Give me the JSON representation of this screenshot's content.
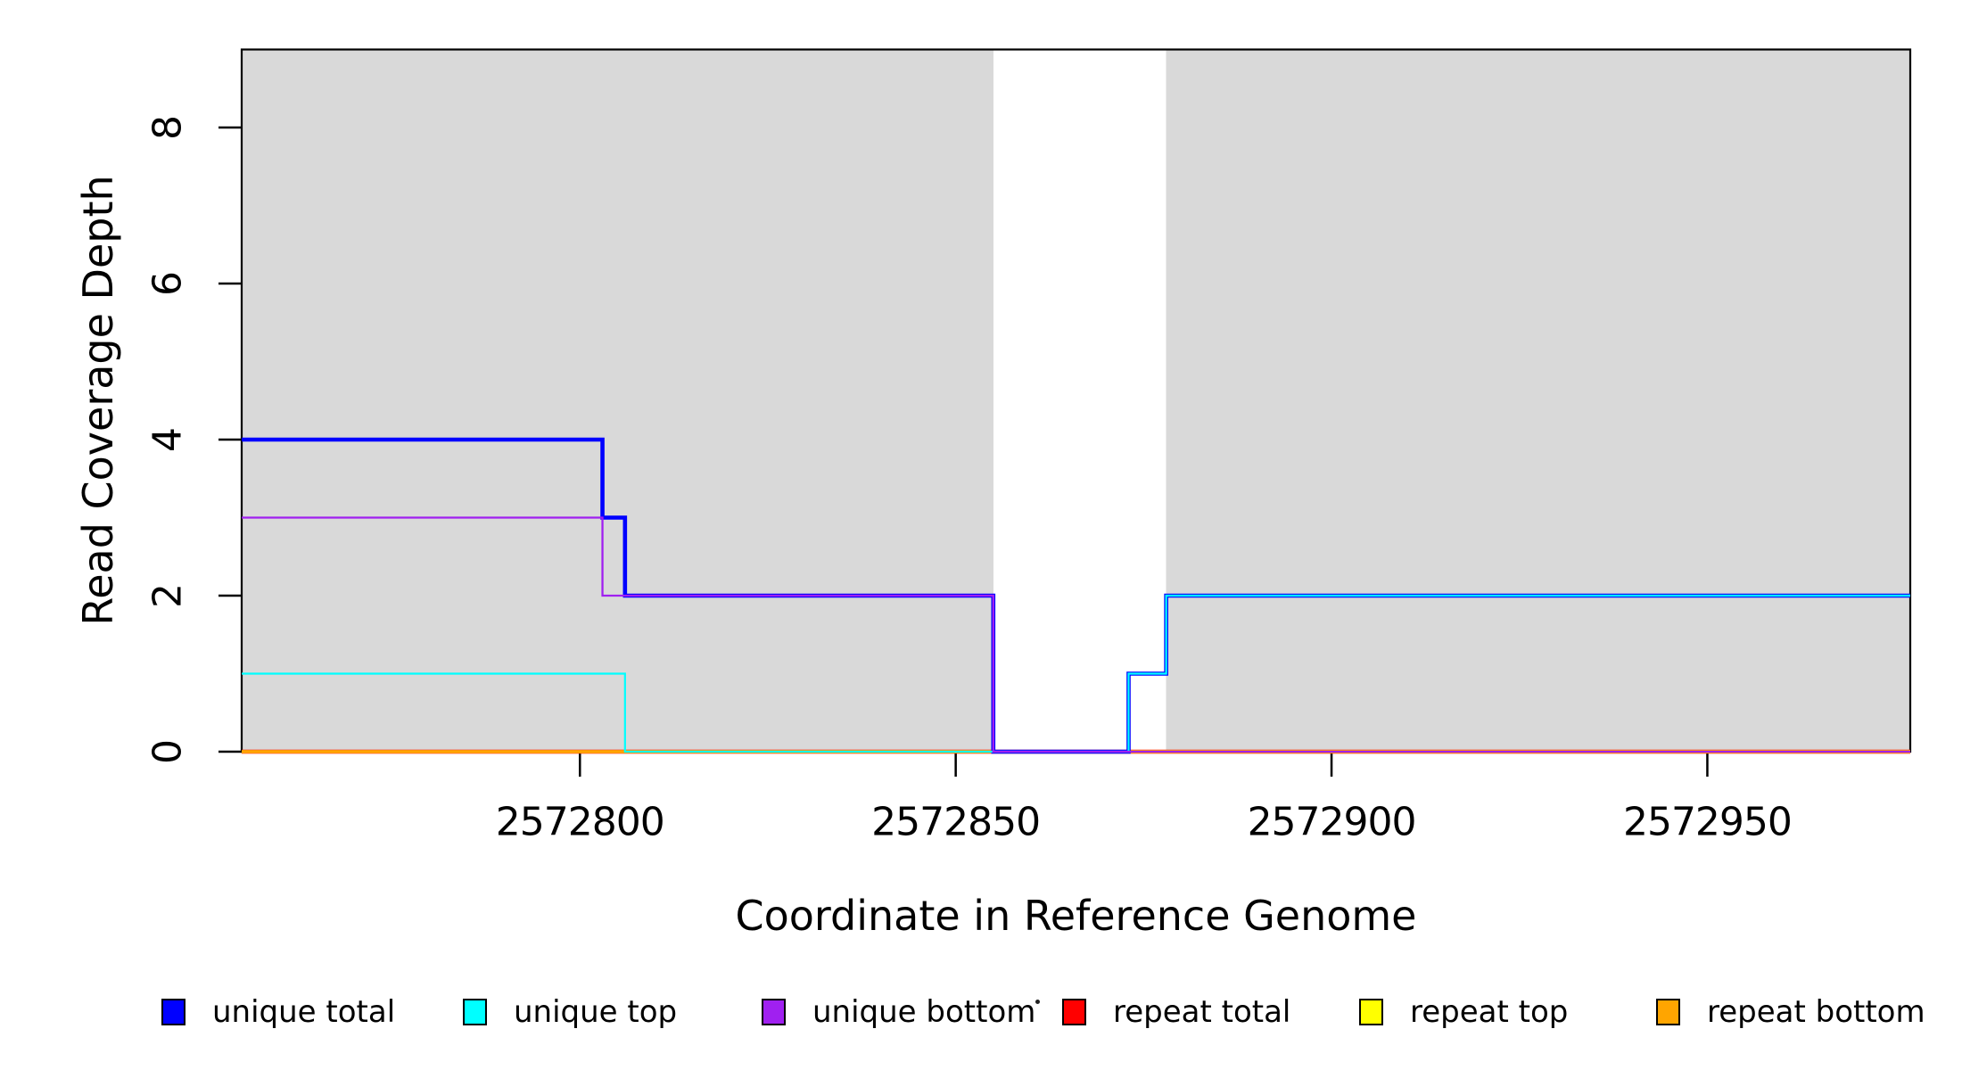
{
  "figure": {
    "background": "#FFFFFF",
    "shade_color": "#D9D9D9",
    "box_color": "#000000",
    "tick_color": "#000000",
    "text_color": "#000000"
  },
  "chart_data": {
    "type": "line",
    "subtype": "step",
    "title": "",
    "xlabel": "Coordinate in Reference Genome",
    "ylabel": "Read Coverage Depth",
    "xlim": [
      2572755,
      2572977
    ],
    "ylim": [
      0,
      9
    ],
    "xticks": [
      2572800,
      2572850,
      2572900,
      2572950
    ],
    "yticks": [
      0,
      2,
      4,
      6,
      8
    ],
    "grid": false,
    "legend_position": "bottom",
    "shaded_regions": [
      {
        "x0": 2572755,
        "x1": 2572855,
        "color": "#D9D9D9"
      },
      {
        "x0": 2572878,
        "x1": 2572977,
        "color": "#D9D9D9"
      }
    ],
    "series": [
      {
        "name": "repeat total",
        "color": "#FF0000",
        "width": 4.5,
        "points": [
          [
            2572755,
            0
          ],
          [
            2572977,
            0
          ]
        ]
      },
      {
        "name": "repeat top",
        "color": "#FFFF00",
        "width": 3.6,
        "points": [
          [
            2572755,
            0
          ],
          [
            2572977,
            0
          ]
        ]
      },
      {
        "name": "repeat bottom",
        "color": "#FFA500",
        "width": 3.0,
        "points": [
          [
            2572755,
            0
          ],
          [
            2572977,
            0
          ]
        ]
      },
      {
        "name": "unique total",
        "color": "#0000FF",
        "width": 4.6,
        "points": [
          [
            2572755,
            4
          ],
          [
            2572803,
            4
          ],
          [
            2572803,
            3
          ],
          [
            2572806,
            3
          ],
          [
            2572806,
            2
          ],
          [
            2572855,
            2
          ],
          [
            2572855,
            0
          ],
          [
            2572873,
            0
          ],
          [
            2572873,
            1
          ],
          [
            2572878,
            1
          ],
          [
            2572878,
            2
          ],
          [
            2572977,
            2
          ]
        ]
      },
      {
        "name": "unique top",
        "color": "#00FFFF",
        "width": 2.2,
        "points": [
          [
            2572755,
            1
          ],
          [
            2572806,
            1
          ],
          [
            2572806,
            0
          ],
          [
            2572873,
            0
          ],
          [
            2572873,
            1
          ],
          [
            2572878,
            1
          ],
          [
            2572878,
            2
          ],
          [
            2572977,
            2
          ]
        ]
      },
      {
        "name": "unique bottom",
        "color": "#A020F0",
        "width": 2.3,
        "points": [
          [
            2572755,
            3
          ],
          [
            2572803,
            3
          ],
          [
            2572803,
            2
          ],
          [
            2572855,
            2
          ],
          [
            2572855,
            0
          ],
          [
            2572977,
            0
          ]
        ]
      }
    ],
    "legend": {
      "items": [
        {
          "label": "unique total",
          "color": "#0000FF"
        },
        {
          "label": "unique top",
          "color": "#00FFFF"
        },
        {
          "label": "unique bottom",
          "color": "#A020F0"
        },
        {
          "label": "repeat total",
          "color": "#FF0000"
        },
        {
          "label": "repeat top",
          "color": "#FFFF00"
        },
        {
          "label": "repeat bottom",
          "color": "#FFA500"
        }
      ]
    }
  }
}
